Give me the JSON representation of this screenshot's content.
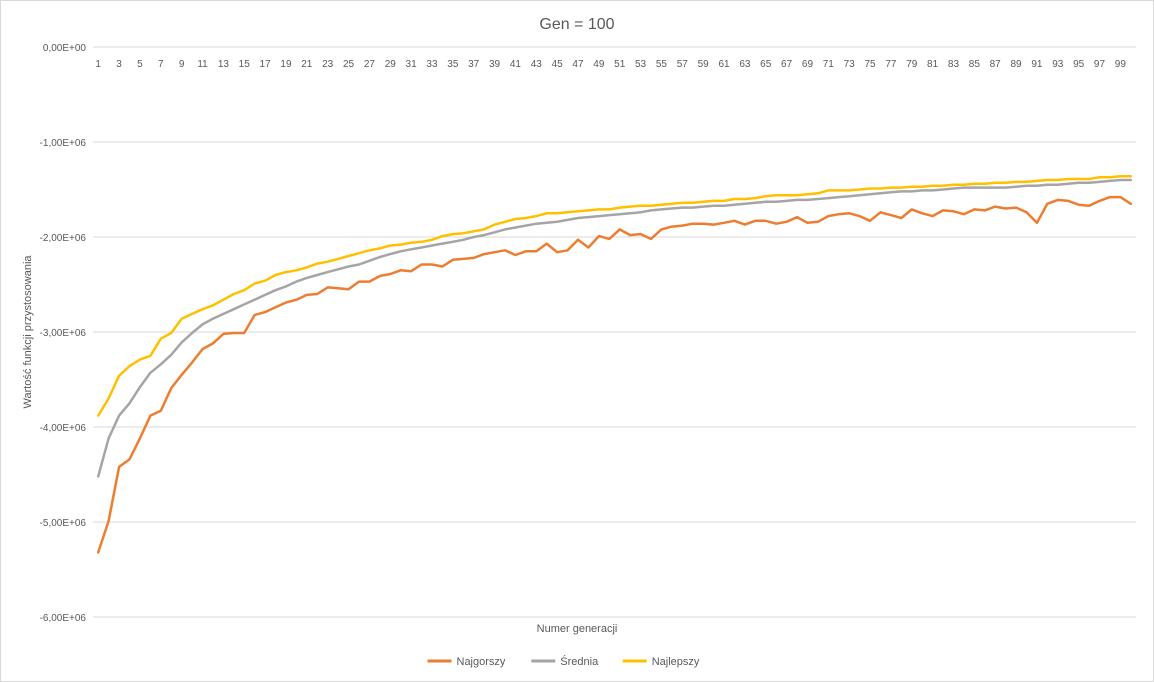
{
  "chart_data": {
    "type": "line",
    "title": "Gen = 100",
    "xlabel": "Numer generacji",
    "ylabel": "Wartość funkcji przystosowania",
    "ylim": [
      -6000000,
      0
    ],
    "y_ticks": [
      0,
      -1000000,
      -2000000,
      -3000000,
      -4000000,
      -5000000,
      -6000000
    ],
    "y_tick_labels": [
      "0,00E+00",
      "-1,00E+06",
      "-2,00E+06",
      "-3,00E+06",
      "-4,00E+06",
      "-5,00E+06",
      "-6,00E+06"
    ],
    "x_axis_position": "top",
    "x_tick_labels": [
      "1",
      "3",
      "5",
      "7",
      "9",
      "11",
      "13",
      "15",
      "17",
      "19",
      "21",
      "23",
      "25",
      "27",
      "29",
      "31",
      "33",
      "35",
      "37",
      "39",
      "41",
      "43",
      "45",
      "47",
      "49",
      "51",
      "53",
      "55",
      "57",
      "59",
      "61",
      "63",
      "65",
      "67",
      "69",
      "71",
      "73",
      "75",
      "77",
      "79",
      "81",
      "83",
      "85",
      "87",
      "89",
      "91",
      "93",
      "95",
      "97",
      "99"
    ],
    "grid": "horizontal",
    "legend_position": "bottom",
    "categories": [
      1,
      2,
      3,
      4,
      5,
      6,
      7,
      8,
      9,
      10,
      11,
      12,
      13,
      14,
      15,
      16,
      17,
      18,
      19,
      20,
      21,
      22,
      23,
      24,
      25,
      26,
      27,
      28,
      29,
      30,
      31,
      32,
      33,
      34,
      35,
      36,
      37,
      38,
      39,
      40,
      41,
      42,
      43,
      44,
      45,
      46,
      47,
      48,
      49,
      50,
      51,
      52,
      53,
      54,
      55,
      56,
      57,
      58,
      59,
      60,
      61,
      62,
      63,
      64,
      65,
      66,
      67,
      68,
      69,
      70,
      71,
      72,
      73,
      74,
      75,
      76,
      77,
      78,
      79,
      80,
      81,
      82,
      83,
      84,
      85,
      86,
      87,
      88,
      89,
      90,
      91,
      92,
      93,
      94,
      95,
      96,
      97,
      98,
      99,
      100
    ],
    "series": [
      {
        "name": "Najgorszy",
        "color": "#ED7D31",
        "values": [
          -5320000,
          -4990000,
          -4420000,
          -4340000,
          -4120000,
          -3880000,
          -3830000,
          -3590000,
          -3450000,
          -3320000,
          -3180000,
          -3120000,
          -3020000,
          -3010000,
          -3010000,
          -2820000,
          -2790000,
          -2740000,
          -2690000,
          -2660000,
          -2610000,
          -2600000,
          -2530000,
          -2540000,
          -2550000,
          -2470000,
          -2470000,
          -2410000,
          -2390000,
          -2350000,
          -2360000,
          -2290000,
          -2290000,
          -2310000,
          -2240000,
          -2230000,
          -2220000,
          -2180000,
          -2160000,
          -2140000,
          -2190000,
          -2150000,
          -2150000,
          -2070000,
          -2160000,
          -2140000,
          -2030000,
          -2110000,
          -1990000,
          -2020000,
          -1920000,
          -1980000,
          -1970000,
          -2020000,
          -1920000,
          -1890000,
          -1880000,
          -1860000,
          -1860000,
          -1870000,
          -1850000,
          -1830000,
          -1870000,
          -1830000,
          -1830000,
          -1860000,
          -1840000,
          -1790000,
          -1850000,
          -1840000,
          -1780000,
          -1760000,
          -1750000,
          -1780000,
          -1830000,
          -1740000,
          -1770000,
          -1800000,
          -1710000,
          -1750000,
          -1780000,
          -1720000,
          -1730000,
          -1760000,
          -1710000,
          -1720000,
          -1680000,
          -1700000,
          -1690000,
          -1740000,
          -1850000,
          -1650000,
          -1610000,
          -1620000,
          -1660000,
          -1670000,
          -1620000,
          -1580000,
          -1580000,
          -1650000
        ]
      },
      {
        "name": "Średnia",
        "color": "#A5A5A5",
        "values": [
          -4520000,
          -4120000,
          -3880000,
          -3750000,
          -3580000,
          -3430000,
          -3340000,
          -3240000,
          -3110000,
          -3010000,
          -2920000,
          -2860000,
          -2810000,
          -2760000,
          -2710000,
          -2660000,
          -2610000,
          -2560000,
          -2520000,
          -2470000,
          -2430000,
          -2400000,
          -2370000,
          -2340000,
          -2310000,
          -2290000,
          -2250000,
          -2210000,
          -2180000,
          -2150000,
          -2130000,
          -2110000,
          -2090000,
          -2070000,
          -2050000,
          -2030000,
          -2000000,
          -1980000,
          -1950000,
          -1920000,
          -1900000,
          -1880000,
          -1860000,
          -1850000,
          -1840000,
          -1820000,
          -1800000,
          -1790000,
          -1780000,
          -1770000,
          -1760000,
          -1750000,
          -1740000,
          -1720000,
          -1710000,
          -1700000,
          -1690000,
          -1690000,
          -1680000,
          -1670000,
          -1670000,
          -1660000,
          -1650000,
          -1640000,
          -1630000,
          -1630000,
          -1620000,
          -1610000,
          -1610000,
          -1600000,
          -1590000,
          -1580000,
          -1570000,
          -1560000,
          -1550000,
          -1540000,
          -1530000,
          -1520000,
          -1520000,
          -1510000,
          -1510000,
          -1500000,
          -1490000,
          -1480000,
          -1480000,
          -1480000,
          -1480000,
          -1480000,
          -1470000,
          -1460000,
          -1460000,
          -1450000,
          -1450000,
          -1440000,
          -1430000,
          -1430000,
          -1420000,
          -1410000,
          -1400000,
          -1400000
        ]
      },
      {
        "name": "Najlepszy",
        "color": "#FFC000",
        "values": [
          -3880000,
          -3700000,
          -3460000,
          -3360000,
          -3290000,
          -3250000,
          -3070000,
          -3010000,
          -2860000,
          -2810000,
          -2760000,
          -2720000,
          -2660000,
          -2600000,
          -2560000,
          -2490000,
          -2460000,
          -2400000,
          -2370000,
          -2350000,
          -2320000,
          -2280000,
          -2260000,
          -2230000,
          -2200000,
          -2170000,
          -2140000,
          -2120000,
          -2090000,
          -2080000,
          -2060000,
          -2050000,
          -2030000,
          -1990000,
          -1970000,
          -1960000,
          -1940000,
          -1920000,
          -1870000,
          -1840000,
          -1810000,
          -1800000,
          -1780000,
          -1750000,
          -1750000,
          -1740000,
          -1730000,
          -1720000,
          -1710000,
          -1710000,
          -1690000,
          -1680000,
          -1670000,
          -1670000,
          -1660000,
          -1650000,
          -1640000,
          -1640000,
          -1630000,
          -1620000,
          -1620000,
          -1600000,
          -1600000,
          -1590000,
          -1570000,
          -1560000,
          -1560000,
          -1560000,
          -1550000,
          -1540000,
          -1510000,
          -1510000,
          -1510000,
          -1500000,
          -1490000,
          -1490000,
          -1480000,
          -1480000,
          -1470000,
          -1470000,
          -1460000,
          -1460000,
          -1450000,
          -1450000,
          -1440000,
          -1440000,
          -1430000,
          -1430000,
          -1420000,
          -1420000,
          -1410000,
          -1400000,
          -1400000,
          -1390000,
          -1390000,
          -1390000,
          -1370000,
          -1370000,
          -1360000,
          -1360000
        ]
      }
    ]
  }
}
